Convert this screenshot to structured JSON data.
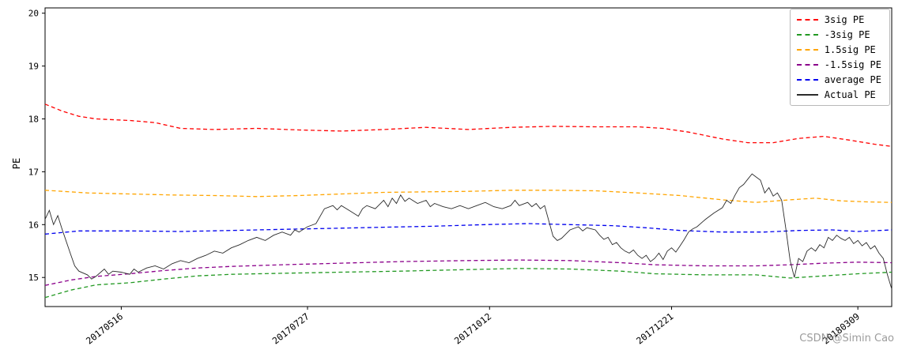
{
  "figure": {
    "background": "#ffffff",
    "watermark": {
      "text": "CSDN @Simin Cao",
      "color": "#9c9c9c"
    }
  },
  "chart_data": {
    "type": "line",
    "title": "",
    "xlabel": "",
    "ylabel": "PE",
    "ylim": [
      14.45,
      20.1
    ],
    "yticks": [
      15,
      16,
      17,
      18,
      19,
      20
    ],
    "grid": false,
    "legend_position": "upper right",
    "xticks": [
      {
        "label": "20170516",
        "pos": 0.09
      },
      {
        "label": "20170727",
        "pos": 0.31
      },
      {
        "label": "20171012",
        "pos": 0.525
      },
      {
        "label": "20171221",
        "pos": 0.74
      },
      {
        "label": "20180309",
        "pos": 0.96
      }
    ],
    "series": [
      {
        "name": "3sig PE",
        "color": "#ff0000",
        "style": "dashed",
        "width": 1.3,
        "points": [
          [
            0,
            18.28
          ],
          [
            0.02,
            18.15
          ],
          [
            0.04,
            18.05
          ],
          [
            0.06,
            18.0
          ],
          [
            0.1,
            17.97
          ],
          [
            0.13,
            17.93
          ],
          [
            0.16,
            17.82
          ],
          [
            0.2,
            17.8
          ],
          [
            0.25,
            17.82
          ],
          [
            0.3,
            17.79
          ],
          [
            0.35,
            17.77
          ],
          [
            0.4,
            17.8
          ],
          [
            0.45,
            17.84
          ],
          [
            0.5,
            17.8
          ],
          [
            0.55,
            17.84
          ],
          [
            0.6,
            17.86
          ],
          [
            0.65,
            17.85
          ],
          [
            0.7,
            17.85
          ],
          [
            0.73,
            17.82
          ],
          [
            0.76,
            17.75
          ],
          [
            0.8,
            17.62
          ],
          [
            0.83,
            17.55
          ],
          [
            0.86,
            17.55
          ],
          [
            0.89,
            17.63
          ],
          [
            0.92,
            17.67
          ],
          [
            0.95,
            17.6
          ],
          [
            0.98,
            17.52
          ],
          [
            1,
            17.48
          ]
        ]
      },
      {
        "name": "-3sig PE",
        "color": "#229922",
        "style": "dashed",
        "width": 1.3,
        "points": [
          [
            0,
            14.62
          ],
          [
            0.03,
            14.76
          ],
          [
            0.06,
            14.86
          ],
          [
            0.1,
            14.9
          ],
          [
            0.14,
            14.97
          ],
          [
            0.18,
            15.03
          ],
          [
            0.22,
            15.06
          ],
          [
            0.28,
            15.08
          ],
          [
            0.35,
            15.1
          ],
          [
            0.42,
            15.12
          ],
          [
            0.5,
            15.15
          ],
          [
            0.56,
            15.17
          ],
          [
            0.62,
            15.16
          ],
          [
            0.68,
            15.12
          ],
          [
            0.72,
            15.07
          ],
          [
            0.78,
            15.05
          ],
          [
            0.84,
            15.05
          ],
          [
            0.88,
            14.99
          ],
          [
            0.92,
            15.03
          ],
          [
            0.96,
            15.07
          ],
          [
            1,
            15.1
          ]
        ]
      },
      {
        "name": "1.5sig PE",
        "color": "#ffa500",
        "style": "dashed",
        "width": 1.3,
        "points": [
          [
            0,
            16.65
          ],
          [
            0.05,
            16.6
          ],
          [
            0.1,
            16.58
          ],
          [
            0.15,
            16.56
          ],
          [
            0.2,
            16.55
          ],
          [
            0.25,
            16.53
          ],
          [
            0.3,
            16.55
          ],
          [
            0.35,
            16.58
          ],
          [
            0.4,
            16.61
          ],
          [
            0.45,
            16.62
          ],
          [
            0.5,
            16.63
          ],
          [
            0.55,
            16.65
          ],
          [
            0.6,
            16.65
          ],
          [
            0.65,
            16.64
          ],
          [
            0.7,
            16.6
          ],
          [
            0.75,
            16.55
          ],
          [
            0.8,
            16.47
          ],
          [
            0.84,
            16.42
          ],
          [
            0.88,
            16.47
          ],
          [
            0.91,
            16.5
          ],
          [
            0.94,
            16.45
          ],
          [
            0.97,
            16.43
          ],
          [
            1,
            16.42
          ]
        ]
      },
      {
        "name": "-1.5sig PE",
        "color": "#8b008b",
        "style": "dashed",
        "width": 1.3,
        "points": [
          [
            0,
            14.85
          ],
          [
            0.03,
            14.95
          ],
          [
            0.06,
            15.02
          ],
          [
            0.1,
            15.07
          ],
          [
            0.14,
            15.13
          ],
          [
            0.18,
            15.18
          ],
          [
            0.22,
            15.21
          ],
          [
            0.28,
            15.24
          ],
          [
            0.35,
            15.27
          ],
          [
            0.42,
            15.3
          ],
          [
            0.5,
            15.32
          ],
          [
            0.56,
            15.33
          ],
          [
            0.62,
            15.32
          ],
          [
            0.68,
            15.28
          ],
          [
            0.72,
            15.24
          ],
          [
            0.78,
            15.22
          ],
          [
            0.84,
            15.22
          ],
          [
            0.88,
            15.24
          ],
          [
            0.92,
            15.27
          ],
          [
            0.96,
            15.29
          ],
          [
            1,
            15.28
          ]
        ]
      },
      {
        "name": "average PE",
        "color": "#0000ee",
        "style": "dashed",
        "width": 1.3,
        "points": [
          [
            0,
            15.82
          ],
          [
            0.04,
            15.88
          ],
          [
            0.1,
            15.88
          ],
          [
            0.16,
            15.87
          ],
          [
            0.22,
            15.89
          ],
          [
            0.28,
            15.91
          ],
          [
            0.34,
            15.93
          ],
          [
            0.4,
            15.95
          ],
          [
            0.46,
            15.97
          ],
          [
            0.52,
            16.0
          ],
          [
            0.57,
            16.02
          ],
          [
            0.62,
            16.0
          ],
          [
            0.67,
            15.98
          ],
          [
            0.71,
            15.94
          ],
          [
            0.75,
            15.89
          ],
          [
            0.8,
            15.86
          ],
          [
            0.85,
            15.86
          ],
          [
            0.89,
            15.89
          ],
          [
            0.93,
            15.9
          ],
          [
            0.96,
            15.87
          ],
          [
            1,
            15.9
          ]
        ]
      },
      {
        "name": "Actual PE",
        "color": "#2b2b2b",
        "style": "solid",
        "width": 0.9,
        "points": [
          [
            0,
            16.1
          ],
          [
            0.005,
            16.27
          ],
          [
            0.01,
            16.0
          ],
          [
            0.015,
            16.17
          ],
          [
            0.02,
            15.92
          ],
          [
            0.03,
            15.45
          ],
          [
            0.035,
            15.22
          ],
          [
            0.04,
            15.12
          ],
          [
            0.05,
            15.05
          ],
          [
            0.055,
            14.97
          ],
          [
            0.06,
            15.02
          ],
          [
            0.07,
            15.16
          ],
          [
            0.075,
            15.06
          ],
          [
            0.08,
            15.12
          ],
          [
            0.09,
            15.1
          ],
          [
            0.1,
            15.06
          ],
          [
            0.105,
            15.16
          ],
          [
            0.11,
            15.1
          ],
          [
            0.12,
            15.18
          ],
          [
            0.13,
            15.22
          ],
          [
            0.14,
            15.16
          ],
          [
            0.15,
            15.26
          ],
          [
            0.16,
            15.32
          ],
          [
            0.17,
            15.28
          ],
          [
            0.18,
            15.36
          ],
          [
            0.19,
            15.42
          ],
          [
            0.2,
            15.5
          ],
          [
            0.21,
            15.46
          ],
          [
            0.22,
            15.56
          ],
          [
            0.23,
            15.62
          ],
          [
            0.24,
            15.7
          ],
          [
            0.25,
            15.76
          ],
          [
            0.26,
            15.7
          ],
          [
            0.27,
            15.8
          ],
          [
            0.28,
            15.86
          ],
          [
            0.29,
            15.8
          ],
          [
            0.295,
            15.9
          ],
          [
            0.3,
            15.86
          ],
          [
            0.31,
            15.96
          ],
          [
            0.32,
            16.02
          ],
          [
            0.33,
            16.3
          ],
          [
            0.34,
            16.36
          ],
          [
            0.345,
            16.28
          ],
          [
            0.35,
            16.36
          ],
          [
            0.36,
            16.26
          ],
          [
            0.37,
            16.16
          ],
          [
            0.375,
            16.3
          ],
          [
            0.38,
            16.36
          ],
          [
            0.39,
            16.3
          ],
          [
            0.4,
            16.46
          ],
          [
            0.405,
            16.34
          ],
          [
            0.41,
            16.5
          ],
          [
            0.415,
            16.4
          ],
          [
            0.42,
            16.56
          ],
          [
            0.425,
            16.44
          ],
          [
            0.43,
            16.5
          ],
          [
            0.44,
            16.4
          ],
          [
            0.45,
            16.46
          ],
          [
            0.455,
            16.34
          ],
          [
            0.46,
            16.4
          ],
          [
            0.47,
            16.34
          ],
          [
            0.48,
            16.3
          ],
          [
            0.49,
            16.36
          ],
          [
            0.5,
            16.3
          ],
          [
            0.51,
            16.36
          ],
          [
            0.52,
            16.42
          ],
          [
            0.53,
            16.34
          ],
          [
            0.54,
            16.3
          ],
          [
            0.55,
            16.36
          ],
          [
            0.555,
            16.46
          ],
          [
            0.56,
            16.36
          ],
          [
            0.57,
            16.42
          ],
          [
            0.575,
            16.34
          ],
          [
            0.58,
            16.4
          ],
          [
            0.585,
            16.3
          ],
          [
            0.59,
            16.36
          ],
          [
            0.6,
            15.78
          ],
          [
            0.605,
            15.7
          ],
          [
            0.61,
            15.74
          ],
          [
            0.615,
            15.82
          ],
          [
            0.62,
            15.9
          ],
          [
            0.63,
            15.96
          ],
          [
            0.635,
            15.88
          ],
          [
            0.64,
            15.94
          ],
          [
            0.65,
            15.9
          ],
          [
            0.655,
            15.8
          ],
          [
            0.66,
            15.72
          ],
          [
            0.665,
            15.76
          ],
          [
            0.67,
            15.62
          ],
          [
            0.675,
            15.66
          ],
          [
            0.68,
            15.56
          ],
          [
            0.685,
            15.5
          ],
          [
            0.69,
            15.46
          ],
          [
            0.695,
            15.52
          ],
          [
            0.7,
            15.42
          ],
          [
            0.705,
            15.36
          ],
          [
            0.71,
            15.42
          ],
          [
            0.715,
            15.3
          ],
          [
            0.72,
            15.36
          ],
          [
            0.725,
            15.46
          ],
          [
            0.73,
            15.34
          ],
          [
            0.735,
            15.5
          ],
          [
            0.74,
            15.56
          ],
          [
            0.745,
            15.48
          ],
          [
            0.75,
            15.6
          ],
          [
            0.755,
            15.72
          ],
          [
            0.76,
            15.86
          ],
          [
            0.765,
            15.92
          ],
          [
            0.77,
            15.96
          ],
          [
            0.78,
            16.1
          ],
          [
            0.79,
            16.22
          ],
          [
            0.8,
            16.32
          ],
          [
            0.805,
            16.46
          ],
          [
            0.81,
            16.4
          ],
          [
            0.815,
            16.56
          ],
          [
            0.82,
            16.7
          ],
          [
            0.825,
            16.76
          ],
          [
            0.83,
            16.86
          ],
          [
            0.835,
            16.96
          ],
          [
            0.84,
            16.9
          ],
          [
            0.845,
            16.84
          ],
          [
            0.85,
            16.6
          ],
          [
            0.855,
            16.7
          ],
          [
            0.86,
            16.54
          ],
          [
            0.865,
            16.6
          ],
          [
            0.87,
            16.46
          ],
          [
            0.875,
            15.92
          ],
          [
            0.88,
            15.32
          ],
          [
            0.885,
            15.0
          ],
          [
            0.89,
            15.36
          ],
          [
            0.895,
            15.3
          ],
          [
            0.9,
            15.5
          ],
          [
            0.905,
            15.56
          ],
          [
            0.91,
            15.5
          ],
          [
            0.915,
            15.62
          ],
          [
            0.92,
            15.56
          ],
          [
            0.925,
            15.76
          ],
          [
            0.93,
            15.7
          ],
          [
            0.935,
            15.8
          ],
          [
            0.94,
            15.74
          ],
          [
            0.945,
            15.7
          ],
          [
            0.95,
            15.76
          ],
          [
            0.955,
            15.64
          ],
          [
            0.96,
            15.7
          ],
          [
            0.965,
            15.6
          ],
          [
            0.97,
            15.66
          ],
          [
            0.975,
            15.54
          ],
          [
            0.98,
            15.6
          ],
          [
            0.985,
            15.46
          ],
          [
            0.99,
            15.36
          ],
          [
            0.995,
            15.05
          ],
          [
            1,
            14.78
          ]
        ]
      }
    ]
  }
}
